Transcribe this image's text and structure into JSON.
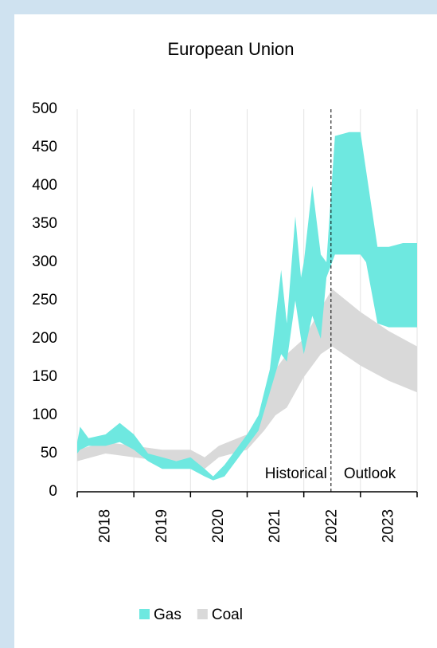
{
  "chart_data": {
    "type": "range-area",
    "title": "European Union",
    "categories": [
      "2018",
      "2019",
      "2020",
      "2021",
      "2022",
      "2023"
    ],
    "xlim": [
      2018,
      2024
    ],
    "xticks": [
      2018,
      2019,
      2020,
      2021,
      2022,
      2023,
      2024
    ],
    "ylim": [
      0,
      500
    ],
    "yticks": [
      0,
      50,
      100,
      150,
      200,
      250,
      300,
      350,
      400,
      450,
      500
    ],
    "grid": true,
    "divider": 2022.48,
    "annotations": [
      "Historical",
      "Outlook"
    ],
    "legend": "bottom",
    "series": [
      {
        "name": "Coal",
        "color": "#d9d9d9",
        "x": [
          2018.0,
          2018.5,
          2019.0,
          2019.5,
          2020.0,
          2020.25,
          2020.5,
          2021.0,
          2021.3,
          2021.5,
          2021.7,
          2022.0,
          2022.3,
          2022.5,
          2023.0,
          2023.5,
          2024.0
        ],
        "low": [
          40,
          50,
          45,
          40,
          40,
          30,
          45,
          55,
          80,
          100,
          110,
          150,
          180,
          190,
          165,
          145,
          130
        ],
        "high": [
          55,
          65,
          60,
          55,
          55,
          45,
          60,
          75,
          110,
          160,
          180,
          200,
          240,
          265,
          235,
          210,
          190
        ]
      },
      {
        "name": "Gas",
        "color": "#6ee8e0",
        "x": [
          2018.0,
          2018.05,
          2018.2,
          2018.5,
          2018.75,
          2019.0,
          2019.25,
          2019.5,
          2019.75,
          2020.0,
          2020.25,
          2020.4,
          2020.6,
          2020.8,
          2021.0,
          2021.2,
          2021.4,
          2021.6,
          2021.7,
          2021.85,
          2021.95,
          2022.0,
          2022.15,
          2022.3,
          2022.4,
          2022.55,
          2022.8,
          2023.0,
          2023.1,
          2023.3,
          2023.5,
          2023.75,
          2024.0
        ],
        "low": [
          50,
          55,
          60,
          60,
          65,
          55,
          40,
          30,
          30,
          30,
          20,
          15,
          20,
          40,
          60,
          80,
          130,
          180,
          170,
          250,
          200,
          180,
          230,
          200,
          280,
          310,
          310,
          310,
          300,
          220,
          215,
          215,
          215
        ],
        "high": [
          65,
          85,
          70,
          75,
          90,
          75,
          50,
          45,
          40,
          45,
          30,
          20,
          35,
          55,
          75,
          100,
          160,
          290,
          220,
          360,
          280,
          300,
          400,
          310,
          300,
          465,
          470,
          470,
          420,
          320,
          320,
          325,
          325
        ]
      }
    ]
  }
}
